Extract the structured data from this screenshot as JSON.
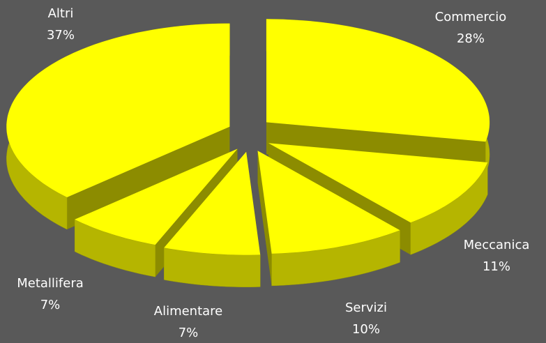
{
  "chart_data": {
    "type": "pie",
    "categories": [
      "Commercio",
      "Meccanica",
      "Servizi",
      "Alimentare",
      "Metallifera",
      "Altri"
    ],
    "values": [
      28,
      11,
      10,
      7,
      7,
      37
    ],
    "value_labels": [
      "28%",
      "11%",
      "10%",
      "7%",
      "7%",
      "37%"
    ],
    "color": "#ffff00"
  }
}
